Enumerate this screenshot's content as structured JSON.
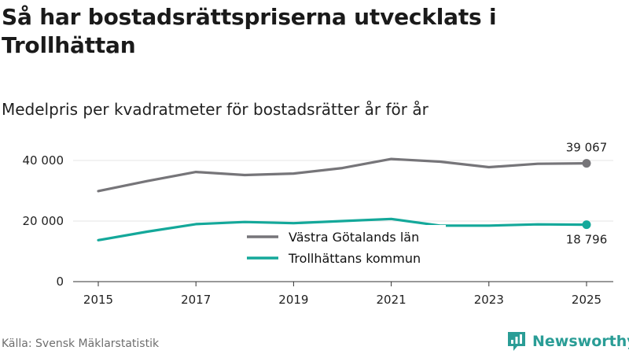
{
  "title": "Så har bostadsrättspriserna utvecklats i Trollhättan",
  "subtitle": "Medelpris per kvadratmeter för bostadsrätter år för år",
  "source": "Källa: Svensk Mäklarstatistik",
  "brand": "Newsworthy",
  "colors": {
    "region": "#767579",
    "municipality": "#14a89a",
    "axis": "#333333",
    "grid": "#e6e6e6",
    "brand": "#2a9d96"
  },
  "chart_data": {
    "type": "line",
    "x": [
      2015,
      2016,
      2017,
      2018,
      2019,
      2020,
      2021,
      2022,
      2023,
      2024,
      2025
    ],
    "x_ticks": [
      "2015",
      "2017",
      "2019",
      "2021",
      "2023",
      "2025"
    ],
    "y_ticks": [
      {
        "value": 0,
        "label": "0"
      },
      {
        "value": 20000,
        "label": "20 000"
      },
      {
        "value": 40000,
        "label": "40 000"
      }
    ],
    "ylim": [
      0,
      40000
    ],
    "series": [
      {
        "name": "Västra Götalands län",
        "color": "#767579",
        "values": [
          29900,
          33200,
          36200,
          35200,
          35700,
          37500,
          40500,
          39600,
          37800,
          38900,
          39067
        ],
        "end_label": "39 067"
      },
      {
        "name": "Trollhättans kommun",
        "color": "#14a89a",
        "values": [
          13700,
          16500,
          19000,
          19700,
          19300,
          20000,
          20700,
          18500,
          18500,
          18900,
          18796
        ],
        "end_label": "18 796"
      }
    ],
    "legend_position": "center-bottom"
  }
}
